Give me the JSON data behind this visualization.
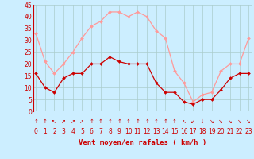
{
  "x": [
    0,
    1,
    2,
    3,
    4,
    5,
    6,
    7,
    8,
    9,
    10,
    11,
    12,
    13,
    14,
    15,
    16,
    17,
    18,
    19,
    20,
    21,
    22,
    23
  ],
  "mean_wind": [
    16,
    10,
    8,
    14,
    16,
    16,
    20,
    20,
    23,
    21,
    20,
    20,
    20,
    12,
    8,
    8,
    4,
    3,
    5,
    5,
    9,
    14,
    16,
    16
  ],
  "gust_wind": [
    33,
    21,
    16,
    20,
    25,
    31,
    36,
    38,
    42,
    42,
    40,
    42,
    40,
    34,
    31,
    17,
    12,
    4,
    7,
    8,
    17,
    20,
    20,
    31
  ],
  "wind_arrows": [
    "↑",
    "↑",
    "↖",
    "↗",
    "↗",
    "↗",
    "↑",
    "↑",
    "↑",
    "↑",
    "↑",
    "↑",
    "↑",
    "↑",
    "↑",
    "↑",
    "↖",
    "↙",
    "↓",
    "↘",
    "↘",
    "↘",
    "↘",
    "↘"
  ],
  "xlabel": "Vent moyen/en rafales ( km/h )",
  "ylim": [
    0,
    45
  ],
  "yticks": [
    0,
    5,
    10,
    15,
    20,
    25,
    30,
    35,
    40,
    45
  ],
  "mean_color": "#cc0000",
  "gust_color": "#ff9999",
  "bg_color": "#cceeff",
  "grid_color": "#aacccc",
  "text_color": "#cc0000",
  "arrow_color": "#cc0000"
}
